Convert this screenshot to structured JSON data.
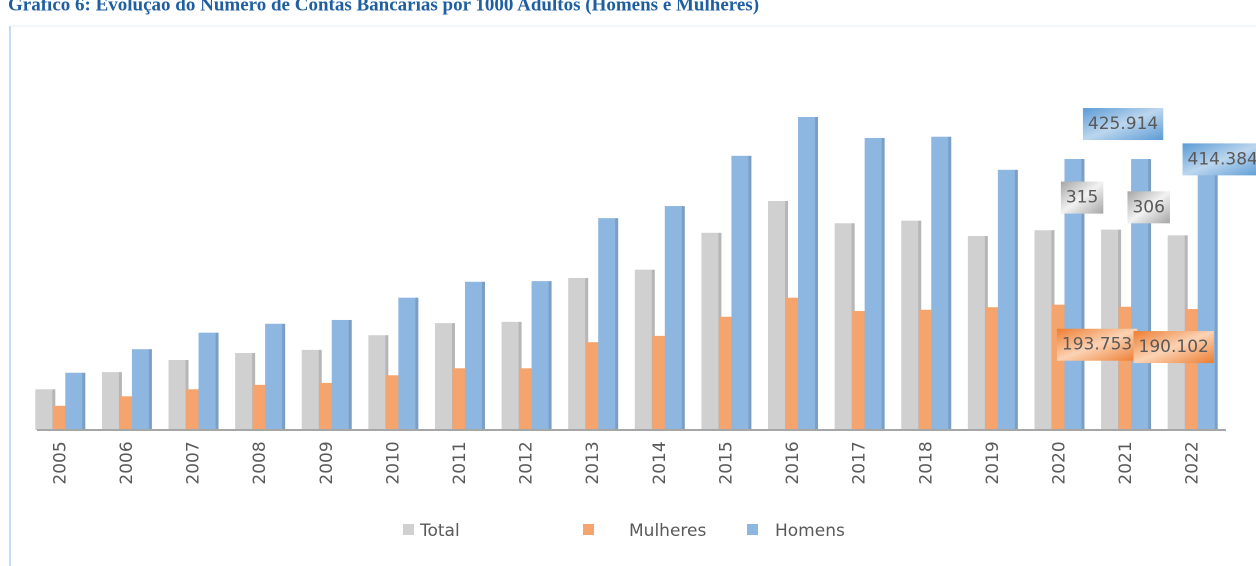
{
  "chart_data": {
    "type": "bar",
    "title": "Gráfico 6: Evolução do Número de Contas Bancárias por 1000 Adultos (Homens e Mulheres)",
    "categories": [
      "2005",
      "2006",
      "2007",
      "2008",
      "2009",
      "2010",
      "2011",
      "2012",
      "2013",
      "2014",
      "2015",
      "2016",
      "2017",
      "2018",
      "2019",
      "2020",
      "2021",
      "2022"
    ],
    "series": [
      {
        "name": "Total",
        "color": "#d0d0d0",
        "values": [
          64,
          91,
          110,
          121,
          126,
          149,
          168,
          170,
          239,
          252,
          310,
          360,
          325,
          329,
          305,
          314,
          315,
          306
        ],
        "value_labels": [
          null,
          null,
          null,
          null,
          null,
          null,
          null,
          null,
          null,
          null,
          null,
          null,
          null,
          null,
          null,
          null,
          "315",
          "306"
        ]
      },
      {
        "name": "Mulheres",
        "color": "#f4a46c",
        "values": [
          38,
          53,
          64,
          71,
          74,
          86,
          97,
          97,
          138,
          148,
          178,
          208,
          187,
          189,
          193,
          197,
          193.753,
          190.102
        ],
        "value_labels": [
          null,
          null,
          null,
          null,
          null,
          null,
          null,
          null,
          null,
          null,
          null,
          null,
          null,
          null,
          null,
          null,
          "193.753",
          "190.102"
        ]
      },
      {
        "name": "Homens",
        "color": "#8db6e0",
        "values": [
          90,
          127,
          153,
          167,
          173,
          208,
          233,
          234,
          333,
          352,
          431,
          492,
          459,
          461,
          409,
          426,
          425.914,
          414.384
        ],
        "value_labels": [
          null,
          null,
          null,
          null,
          null,
          null,
          null,
          null,
          null,
          null,
          null,
          null,
          null,
          null,
          null,
          null,
          "425.914",
          "414.384"
        ]
      }
    ],
    "legend": "bottom"
  }
}
